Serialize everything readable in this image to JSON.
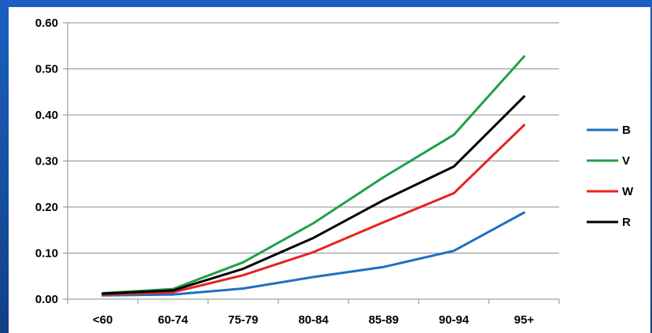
{
  "chart_data": {
    "type": "line",
    "categories": [
      "<60",
      "60-74",
      "75-79",
      "80-84",
      "85-89",
      "90-94",
      "95+"
    ],
    "y_ticks": [
      "0.00",
      "0.10",
      "0.20",
      "0.30",
      "0.40",
      "0.50",
      "0.60"
    ],
    "ylim": [
      0,
      0.6
    ],
    "grid": true,
    "legend_position": "right",
    "series": [
      {
        "name": "B",
        "color": "#1f6fc5",
        "values": [
          0.008,
          0.01,
          0.023,
          0.048,
          0.07,
          0.105,
          0.188
        ]
      },
      {
        "name": "V",
        "color": "#1fa04a",
        "values": [
          0.013,
          0.022,
          0.08,
          0.165,
          0.265,
          0.357,
          0.527
        ]
      },
      {
        "name": "W",
        "color": "#e8221c",
        "values": [
          0.01,
          0.015,
          0.052,
          0.102,
          0.167,
          0.23,
          0.378
        ]
      },
      {
        "name": "R",
        "color": "#000000",
        "values": [
          0.012,
          0.019,
          0.066,
          0.133,
          0.215,
          0.288,
          0.44
        ]
      }
    ]
  }
}
